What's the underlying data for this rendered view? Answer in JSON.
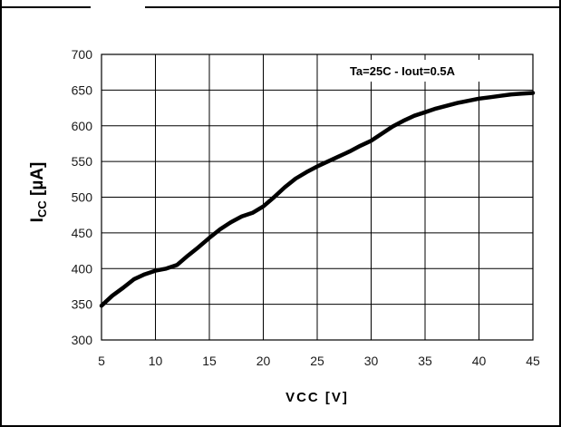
{
  "chart_data": {
    "type": "line",
    "title": "",
    "annotation": "Ta=25C - Iout=0.5A",
    "xlabel": "VCC [V]",
    "ylabel_main": "I",
    "ylabel_sub": "CC",
    "ylabel_tail": " [µA]",
    "xlim": [
      5,
      45
    ],
    "ylim": [
      300,
      700
    ],
    "xticks": [
      5,
      10,
      15,
      20,
      25,
      30,
      35,
      40,
      45
    ],
    "yticks": [
      300,
      350,
      400,
      450,
      500,
      550,
      600,
      650,
      700
    ],
    "grid": true,
    "series": [
      {
        "x": [
          5,
          6,
          7,
          8,
          9,
          10,
          11,
          12,
          13,
          14,
          15,
          16,
          17,
          18,
          19,
          20,
          21,
          22,
          23,
          24,
          25,
          26,
          27,
          28,
          29,
          30,
          31,
          32,
          33,
          34,
          35,
          36,
          37,
          38,
          39,
          40,
          41,
          42,
          43,
          44,
          45
        ],
        "y": [
          348,
          362,
          373,
          385,
          392,
          397,
          400,
          405,
          418,
          430,
          443,
          455,
          465,
          473,
          478,
          487,
          500,
          514,
          526,
          535,
          543,
          550,
          557,
          564,
          572,
          579,
          589,
          599,
          607,
          614,
          619,
          624,
          628,
          632,
          635,
          638,
          640,
          642,
          644,
          645,
          646
        ]
      }
    ],
    "colors": {
      "line": "#000000",
      "grid": "#000000",
      "frame": "#000000"
    }
  }
}
